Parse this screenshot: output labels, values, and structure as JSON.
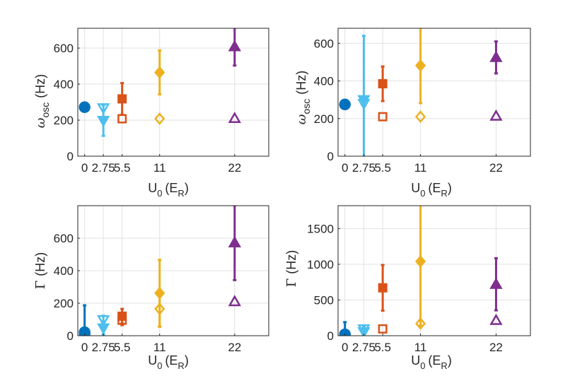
{
  "chart_data": [
    {
      "type": "scatter",
      "panel": "top-left",
      "xlabel": "U0 (ER)",
      "ylabel": "ωosc (Hz)",
      "xlim": [
        -1,
        27
      ],
      "ylim": [
        0,
        710
      ],
      "x_ticks": [
        0,
        2.75,
        5.5,
        11,
        22
      ],
      "x_tick_labels": [
        "0",
        "2.75",
        "5.5",
        "11",
        "22"
      ],
      "y_ticks": [
        0,
        200,
        400,
        600
      ],
      "y_tick_labels": [
        "0",
        "200",
        "400",
        "600"
      ],
      "grid": true,
      "points": [
        {
          "x": 0,
          "y": 272,
          "err": 0,
          "marker": "circle",
          "filled": true,
          "color": "#0072BD"
        },
        {
          "x": 2.75,
          "y": 198,
          "err": 85,
          "marker": "triangle-down",
          "filled": true,
          "color": "#4DBEEE"
        },
        {
          "x": 2.75,
          "y": 268,
          "err": 0,
          "marker": "triangle-down",
          "filled": false,
          "color": "#4DBEEE"
        },
        {
          "x": 5.5,
          "y": 318,
          "err": 88,
          "marker": "square",
          "filled": true,
          "color": "#D95319"
        },
        {
          "x": 5.5,
          "y": 208,
          "err": 0,
          "marker": "square",
          "filled": false,
          "color": "#D95319"
        },
        {
          "x": 11,
          "y": 465,
          "err": 122,
          "marker": "diamond",
          "filled": true,
          "color": "#EDB120"
        },
        {
          "x": 11,
          "y": 208,
          "err": 0,
          "marker": "diamond",
          "filled": false,
          "color": "#EDB120"
        },
        {
          "x": 22,
          "y": 608,
          "err": 105,
          "marker": "triangle-up",
          "filled": true,
          "color": "#7E2F8E"
        },
        {
          "x": 22,
          "y": 210,
          "err": 0,
          "marker": "triangle-up",
          "filled": false,
          "color": "#7E2F8E"
        }
      ]
    },
    {
      "type": "scatter",
      "panel": "top-right",
      "xlabel": "U0 (ER)",
      "ylabel": "ωosc (Hz)",
      "xlim": [
        -1,
        27
      ],
      "ylim": [
        0,
        680
      ],
      "x_ticks": [
        0,
        2.75,
        5.5,
        11,
        22
      ],
      "x_tick_labels": [
        "0",
        "2.75",
        "5.5",
        "11",
        "22"
      ],
      "y_ticks": [
        0,
        200,
        400,
        600
      ],
      "y_tick_labels": [
        "0",
        "200",
        "400",
        "600"
      ],
      "grid": true,
      "points": [
        {
          "x": 0,
          "y": 275,
          "err": 0,
          "marker": "circle",
          "filled": true,
          "color": "#0072BD"
        },
        {
          "x": 2.75,
          "y": 300,
          "err": 340,
          "marker": "triangle-down",
          "filled": true,
          "color": "#4DBEEE"
        },
        {
          "x": 2.75,
          "y": 280,
          "err": 0,
          "marker": "triangle-down",
          "filled": false,
          "color": "#4DBEEE"
        },
        {
          "x": 5.5,
          "y": 385,
          "err": 92,
          "marker": "square",
          "filled": true,
          "color": "#D95319"
        },
        {
          "x": 5.5,
          "y": 210,
          "err": 0,
          "marker": "square",
          "filled": false,
          "color": "#D95319"
        },
        {
          "x": 11,
          "y": 482,
          "err": 200,
          "marker": "diamond",
          "filled": true,
          "color": "#EDB120"
        },
        {
          "x": 11,
          "y": 210,
          "err": 0,
          "marker": "diamond",
          "filled": false,
          "color": "#EDB120"
        },
        {
          "x": 22,
          "y": 525,
          "err": 85,
          "marker": "triangle-up",
          "filled": true,
          "color": "#7E2F8E"
        },
        {
          "x": 22,
          "y": 213,
          "err": 0,
          "marker": "triangle-up",
          "filled": false,
          "color": "#7E2F8E"
        }
      ]
    },
    {
      "type": "scatter",
      "panel": "bottom-left",
      "xlabel": "U0 (ER)",
      "ylabel": "Γ (Hz)",
      "xlim": [
        -1,
        27
      ],
      "ylim": [
        0,
        800
      ],
      "x_ticks": [
        0,
        2.75,
        5.5,
        11,
        22
      ],
      "x_tick_labels": [
        "0",
        "2.75",
        "5.5",
        "11",
        "22"
      ],
      "y_ticks": [
        0,
        200,
        400,
        600
      ],
      "y_tick_labels": [
        "0",
        "200",
        "400",
        "600"
      ],
      "grid": true,
      "points": [
        {
          "x": 0,
          "y": 22,
          "err": 165,
          "marker": "circle",
          "filled": true,
          "color": "#0072BD"
        },
        {
          "x": 0,
          "y": 12,
          "err": 0,
          "marker": "circle",
          "filled": false,
          "color": "#0072BD"
        },
        {
          "x": 2.75,
          "y": 48,
          "err": 40,
          "marker": "triangle-down",
          "filled": true,
          "color": "#4DBEEE"
        },
        {
          "x": 2.75,
          "y": 98,
          "err": 25,
          "marker": "triangle-down",
          "filled": false,
          "color": "#4DBEEE"
        },
        {
          "x": 5.5,
          "y": 120,
          "err": 45,
          "marker": "square",
          "filled": true,
          "color": "#D95319"
        },
        {
          "x": 5.5,
          "y": 95,
          "err": 30,
          "marker": "square",
          "filled": false,
          "color": "#D95319"
        },
        {
          "x": 11,
          "y": 262,
          "err": 205,
          "marker": "diamond",
          "filled": true,
          "color": "#EDB120"
        },
        {
          "x": 11,
          "y": 165,
          "err": 110,
          "marker": "diamond",
          "filled": false,
          "color": "#EDB120"
        },
        {
          "x": 22,
          "y": 572,
          "err": 230,
          "marker": "triangle-up",
          "filled": true,
          "color": "#7E2F8E"
        },
        {
          "x": 22,
          "y": 210,
          "err": 0,
          "marker": "triangle-up",
          "filled": false,
          "color": "#7E2F8E"
        }
      ]
    },
    {
      "type": "scatter",
      "panel": "bottom-right",
      "xlabel": "U0 (ER)",
      "ylabel": "Γ (Hz)",
      "xlim": [
        -1,
        27
      ],
      "ylim": [
        0,
        1820
      ],
      "x_ticks": [
        0,
        2.75,
        5.5,
        11,
        22
      ],
      "x_tick_labels": [
        "0",
        "2.75",
        "5.5",
        "11",
        "22"
      ],
      "y_ticks": [
        0,
        500,
        1000,
        1500
      ],
      "y_tick_labels": [
        "0",
        "500",
        "1000",
        "1500"
      ],
      "grid": true,
      "points": [
        {
          "x": 0,
          "y": 20,
          "err": 170,
          "marker": "circle",
          "filled": true,
          "color": "#0072BD"
        },
        {
          "x": 0,
          "y": 8,
          "err": 0,
          "marker": "circle",
          "filled": false,
          "color": "#0072BD"
        },
        {
          "x": 2.75,
          "y": 55,
          "err": 45,
          "marker": "triangle-down",
          "filled": true,
          "color": "#4DBEEE"
        },
        {
          "x": 2.75,
          "y": 95,
          "err": 35,
          "marker": "triangle-down",
          "filled": false,
          "color": "#4DBEEE"
        },
        {
          "x": 5.5,
          "y": 670,
          "err": 320,
          "marker": "square",
          "filled": true,
          "color": "#D95319"
        },
        {
          "x": 5.5,
          "y": 95,
          "err": 0,
          "marker": "square",
          "filled": false,
          "color": "#D95319"
        },
        {
          "x": 11,
          "y": 1040,
          "err": 900,
          "marker": "diamond",
          "filled": true,
          "color": "#EDB120"
        },
        {
          "x": 11,
          "y": 170,
          "err": 0,
          "marker": "diamond",
          "filled": false,
          "color": "#EDB120"
        },
        {
          "x": 22,
          "y": 720,
          "err": 365,
          "marker": "triangle-up",
          "filled": true,
          "color": "#7E2F8E"
        },
        {
          "x": 22,
          "y": 215,
          "err": 0,
          "marker": "triangle-up",
          "filled": false,
          "color": "#7E2F8E"
        }
      ]
    }
  ],
  "axis_text": {
    "omega_symbol": "ω",
    "omega_sub": "osc",
    "gamma_symbol": "Γ",
    "hz_unit": "(Hz)",
    "u_symbol": "U",
    "u_sub": "0",
    "er_open": "(E",
    "er_sub": "R",
    "er_close": ")"
  }
}
